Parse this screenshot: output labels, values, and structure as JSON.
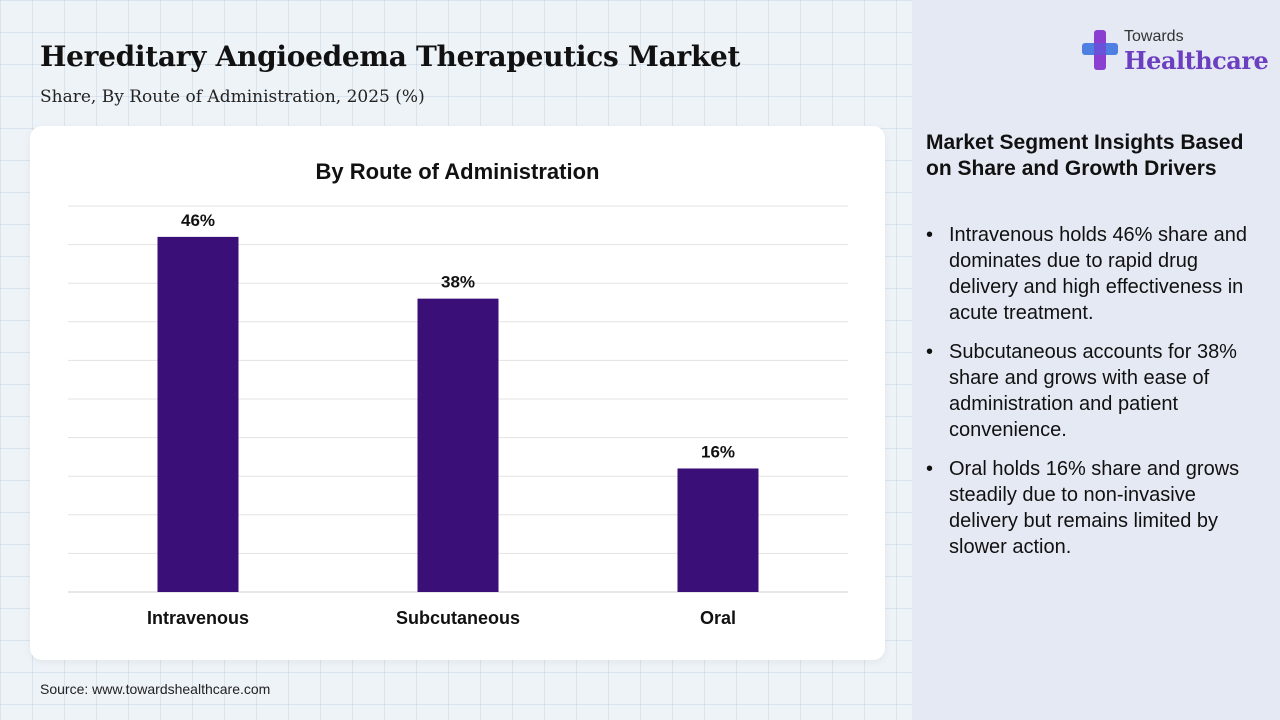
{
  "header": {
    "title": "Hereditary Angioedema Therapeutics Market",
    "subtitle": "Share, By Route of Administration, 2025 (%)"
  },
  "logo": {
    "line1": "Towards",
    "line2": "Healthcare",
    "icon": "cross-plus-icon"
  },
  "chart_data": {
    "type": "bar",
    "title": "By Route of Administration",
    "categories": [
      "Intravenous",
      "Subcutaneous",
      "Oral"
    ],
    "values": [
      46,
      38,
      16
    ],
    "value_labels": [
      "46%",
      "38%",
      "16%"
    ],
    "ylim": [
      0,
      50
    ],
    "grid": true,
    "bar_color": "#3b0f78"
  },
  "insights": {
    "title": "Market Segment Insights Based on Share and Growth Drivers",
    "bullets": [
      "Intravenous holds 46% share and dominates due to rapid drug delivery and high effectiveness in acute treatment.",
      "Subcutaneous accounts for 38% share and grows with ease of administration and patient convenience.",
      "Oral holds 16% share and grows steadily due to non-invasive delivery but remains limited by slower action."
    ]
  },
  "footer": {
    "source": "Source: www.towardshealthcare.com"
  }
}
